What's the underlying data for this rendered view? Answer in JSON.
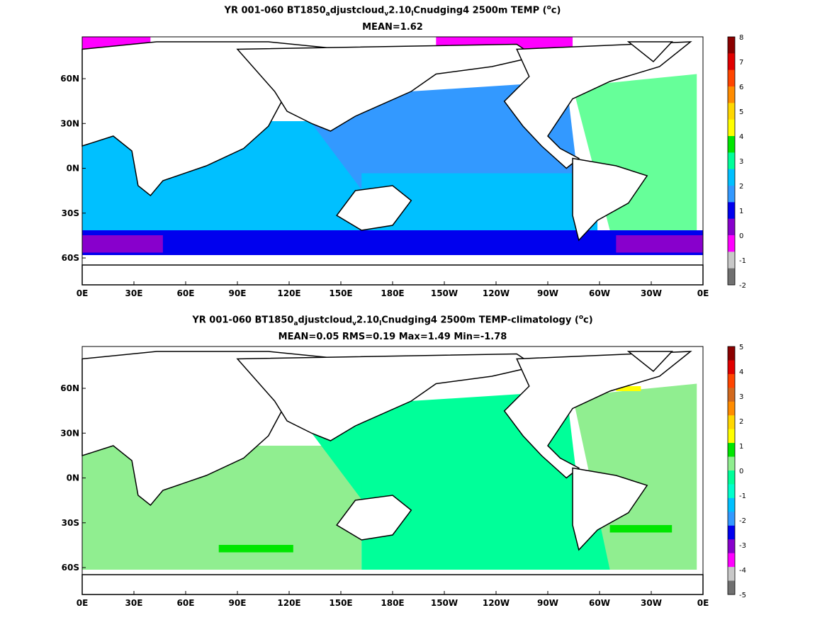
{
  "panels": [
    {
      "title_main": "YR 001-060 BT1850",
      "title_sub1": "a",
      "title_mid1": "djustcloud",
      "title_sub2": "v",
      "title_mid2": "2.10",
      "title_sub3": "l",
      "title_tail": "Cnudging4 2500m TEMP (",
      "title_sup": "o",
      "title_end": "c)",
      "stats": "MEAN=1.62",
      "colorbar_ticks": [
        "8",
        "7",
        "6",
        "5",
        "4",
        "3",
        "2",
        "1",
        "0",
        "-1",
        "-2"
      ],
      "colorbar_colors": [
        "#8b0000",
        "#e00000",
        "#ff4500",
        "#ff8c00",
        "#ffd700",
        "#ffff00",
        "#00e600",
        "#00ff99",
        "#00c0ff",
        "#3399ff",
        "#0000ee",
        "#8800cc",
        "#ff00ff",
        "#c8c8c8",
        "#707070"
      ]
    },
    {
      "title_main": "YR 001-060 BT1850",
      "title_sub1": "a",
      "title_mid1": "djustcloud",
      "title_sub2": "v",
      "title_mid2": "2.10",
      "title_sub3": "l",
      "title_tail": "Cnudging4 2500m TEMP-climatology (",
      "title_sup": "o",
      "title_end": "c)",
      "stats": "MEAN=0.05   RMS=0.19   Max=1.49   Min=-1.78",
      "colorbar_ticks": [
        "5",
        "4",
        "3",
        "2",
        "1",
        "0",
        "-1",
        "-2",
        "-3",
        "-4",
        "-5"
      ],
      "colorbar_colors": [
        "#8b0000",
        "#e00000",
        "#ff4500",
        "#d2691e",
        "#ff8c00",
        "#ffd700",
        "#ffff00",
        "#00e600",
        "#90ee90",
        "#00ff99",
        "#00ffcc",
        "#00c0ff",
        "#3399ff",
        "#0000ee",
        "#8800cc",
        "#ff00ff",
        "#c8c8c8",
        "#707070"
      ]
    }
  ],
  "x_ticks": [
    "0E",
    "30E",
    "60E",
    "90E",
    "120E",
    "150E",
    "180E",
    "150W",
    "120W",
    "90W",
    "60W",
    "30W",
    "0E"
  ],
  "y_ticks": [
    "60N",
    "30N",
    "0N",
    "30S",
    "60S"
  ],
  "map_colors": {
    "land": "#ffffff",
    "coast": "#000000",
    "p1_pacific": "#3399ff",
    "p1_indian": "#00c0ff",
    "p1_atlantic": "#66ff99",
    "p1_southern": "#0000ee",
    "p1_antarctic": "#8800cc",
    "p1_arctic": "#ff00ff",
    "p2_main": "#00ff99",
    "p2_light": "#90ee90",
    "p2_green": "#00e600",
    "p2_yellow": "#ffff00"
  }
}
